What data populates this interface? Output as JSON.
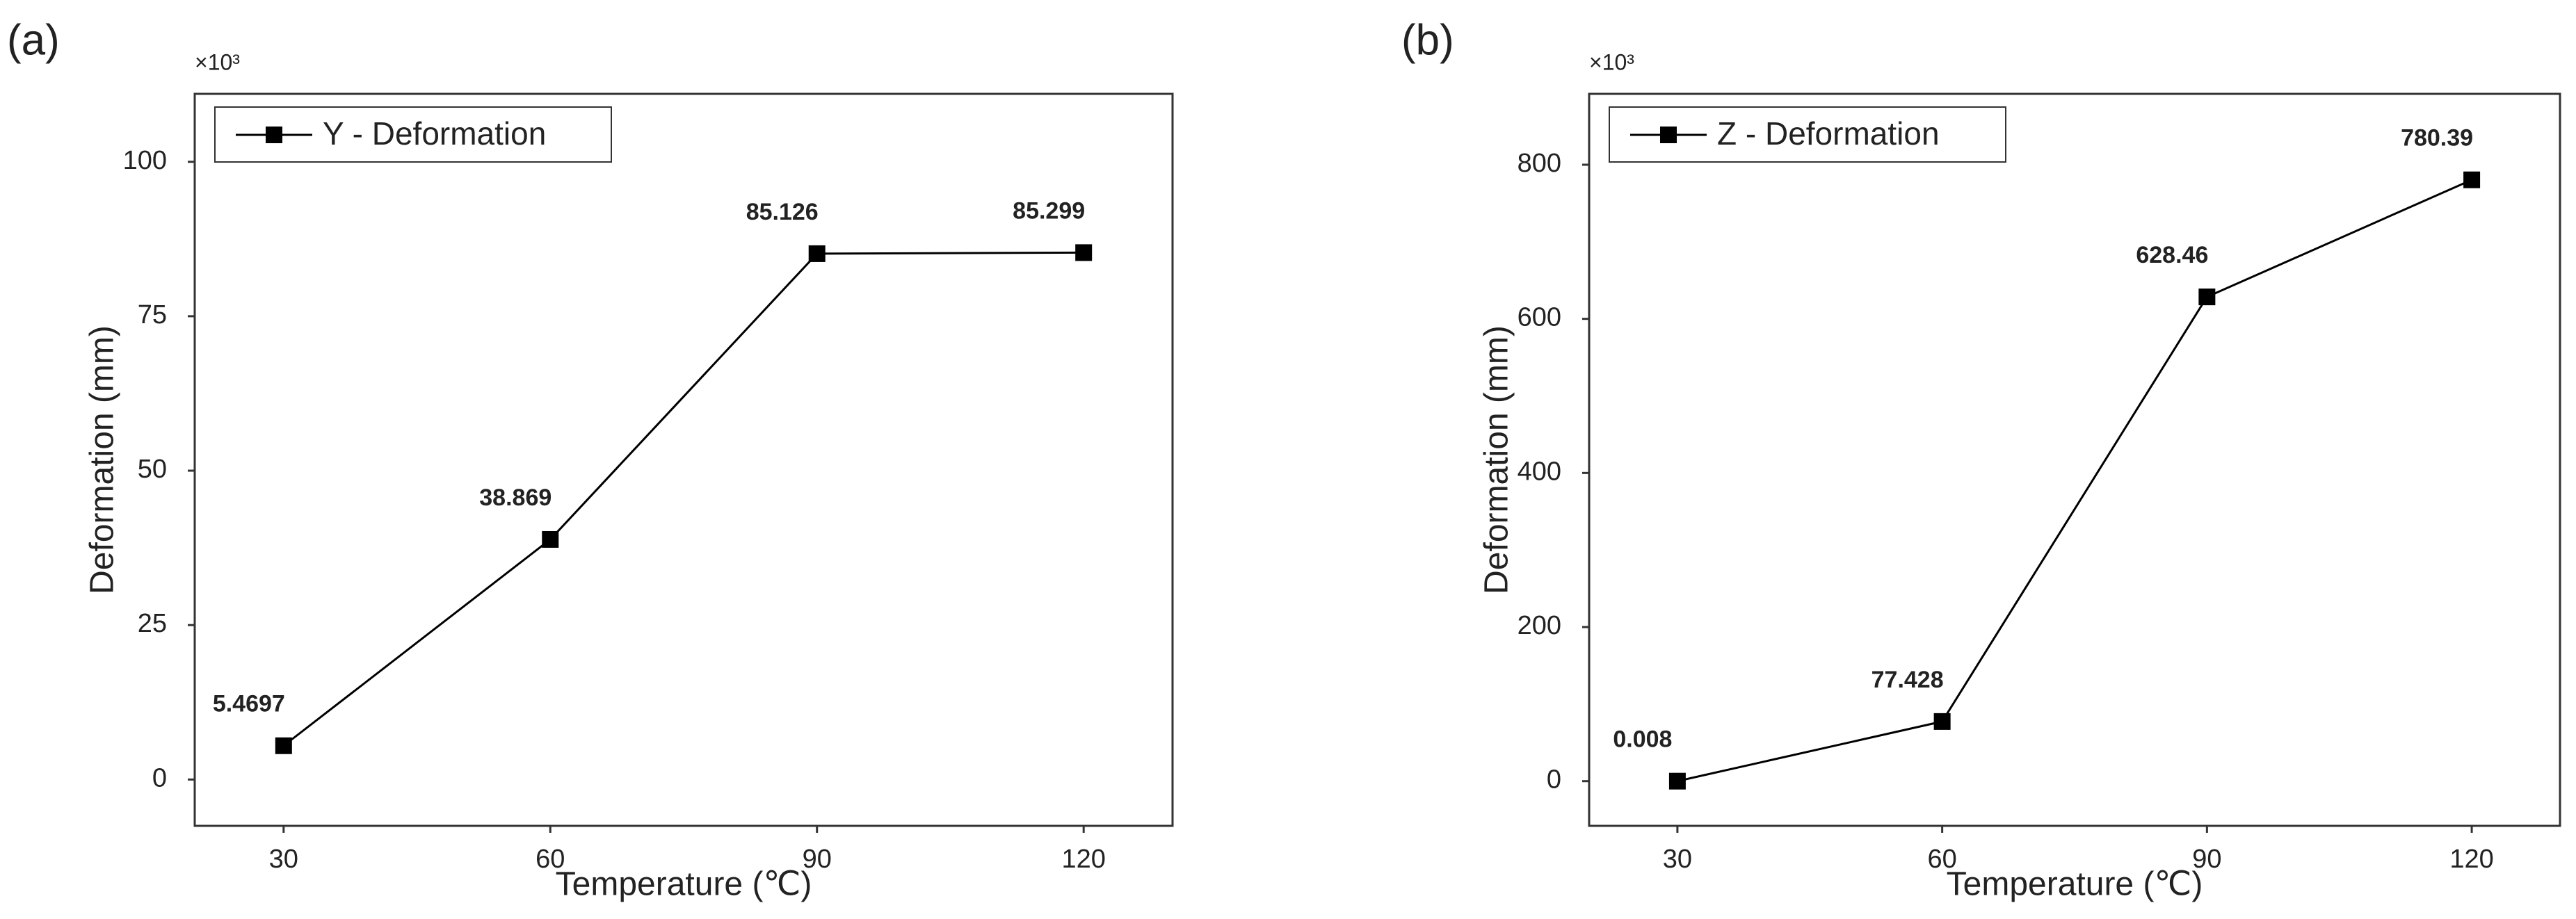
{
  "chart_data": [
    {
      "type": "line",
      "panel_label": "(a)",
      "multiplier": "×10³",
      "x_label": "Temperature (℃)",
      "y_label": "Deformation (mm)",
      "x": [
        30,
        60,
        90,
        120
      ],
      "series": [
        {
          "name": "Y - Deformation",
          "color": "#000000",
          "values": [
            5.4697,
            38.869,
            85.126,
            85.299
          ]
        }
      ],
      "xlim": [
        20,
        130
      ],
      "xticks": [
        30,
        60,
        90,
        120
      ],
      "ylim": [
        -7.5,
        111
      ],
      "yticks": [
        0,
        25,
        50,
        75,
        100
      ],
      "grid": false,
      "legend": "top-left"
    },
    {
      "type": "line",
      "panel_label": "(b)",
      "multiplier": "×10³",
      "x_label": "Temperature (℃)",
      "y_label": "Deformation (mm)",
      "x": [
        30,
        60,
        90,
        120
      ],
      "series": [
        {
          "name": "Z - Deformation",
          "color": "#000000",
          "values": [
            0.008,
            77.428,
            628.46,
            780.39
          ]
        }
      ],
      "xlim": [
        20,
        130
      ],
      "xticks": [
        30,
        60,
        90,
        120
      ],
      "ylim": [
        -58,
        892
      ],
      "yticks": [
        0,
        200,
        400,
        600,
        800
      ],
      "grid": false,
      "legend": "top-left"
    }
  ]
}
